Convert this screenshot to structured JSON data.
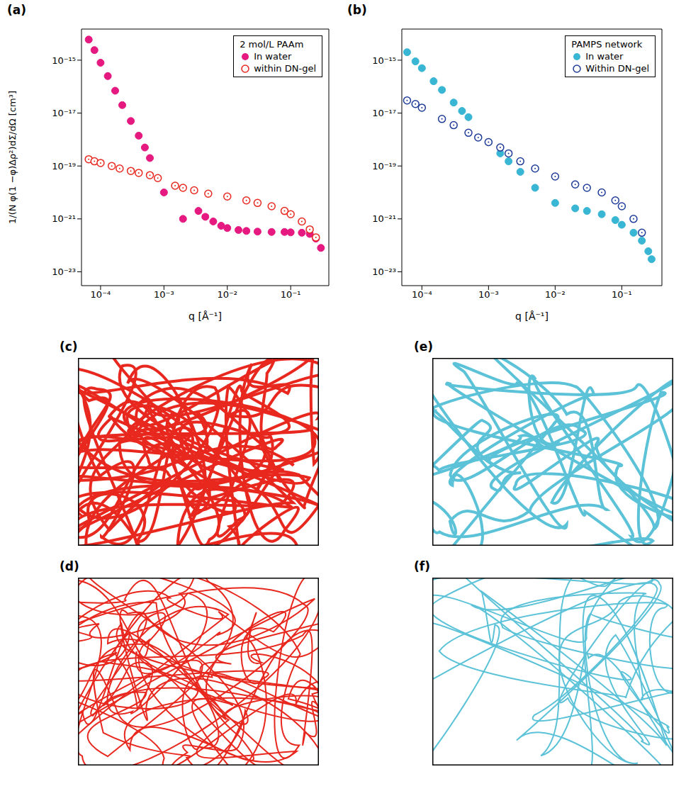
{
  "chart_data": [
    {
      "panel": "(a)",
      "type": "scatter",
      "log": true,
      "grid": false,
      "legend": "top-right",
      "legend_title": "2 mol/L PAAm",
      "x_label": "q [Å⁻¹]",
      "y_label": "1/(N φ(1 −φ)Δρ²)dΣ/dΩ [cm³]",
      "xlim": [
        5e-05,
        0.4
      ],
      "ylim": [
        3e-24,
        1.5e-14
      ],
      "xticks": [
        {
          "value": 0.0001,
          "label": "10⁻⁴"
        },
        {
          "value": 0.001,
          "label": "10⁻³"
        },
        {
          "value": 0.01,
          "label": "10⁻²"
        },
        {
          "value": 0.1,
          "label": "10⁻¹"
        }
      ],
      "yticks": [
        {
          "value": 1e-23,
          "label": "10⁻²³"
        },
        {
          "value": 1e-21,
          "label": "10⁻²¹"
        },
        {
          "value": 1e-19,
          "label": "10⁻¹⁹"
        },
        {
          "value": 1e-17,
          "label": "10⁻¹⁷"
        },
        {
          "value": 1e-15,
          "label": "10⁻¹⁵"
        }
      ],
      "series": [
        {
          "name": "In water",
          "color": "#e5197f",
          "marker": "circle",
          "x": [
            6.5e-05,
            8e-05,
            0.0001,
            0.00013,
            0.00017,
            0.00022,
            0.0003,
            0.0004,
            0.0005,
            0.0006,
            0.001,
            0.002,
            0.0035,
            0.0045,
            0.006,
            0.008,
            0.01,
            0.015,
            0.02,
            0.03,
            0.05,
            0.08,
            0.1,
            0.15,
            0.2,
            0.25,
            0.3
          ],
          "values": [
            6e-15,
            2.4e-15,
            8e-16,
            2.5e-16,
            7e-17,
            2e-17,
            5e-18,
            1.4e-18,
            5e-19,
            2e-19,
            1e-20,
            1e-21,
            2e-21,
            1.2e-21,
            8e-22,
            5.5e-22,
            4.5e-22,
            3.8e-22,
            3.5e-22,
            3.3e-22,
            3.2e-22,
            3.2e-22,
            3.1e-22,
            3e-22,
            2.7e-22,
            1.8e-22,
            8e-23
          ]
        },
        {
          "name": "within DN-gel",
          "color": "#e8281e",
          "marker": "open_circle",
          "x": [
            6.5e-05,
            8e-05,
            0.0001,
            0.00015,
            0.0002,
            0.0003,
            0.0004,
            0.0006,
            0.0008,
            0.0015,
            0.002,
            0.003,
            0.005,
            0.01,
            0.02,
            0.03,
            0.05,
            0.08,
            0.1,
            0.15,
            0.2,
            0.25
          ],
          "values": [
            1.8e-19,
            1.5e-19,
            1.3e-19,
            1e-19,
            8e-20,
            6.5e-20,
            5.5e-20,
            4.5e-20,
            3.5e-20,
            1.8e-20,
            1.5e-20,
            1.2e-20,
            9e-21,
            7e-21,
            5e-21,
            4e-21,
            3e-21,
            2e-21,
            1.5e-21,
            8e-22,
            4e-22,
            2e-22
          ]
        }
      ]
    },
    {
      "panel": "(b)",
      "type": "scatter",
      "log": true,
      "grid": false,
      "legend": "top-right",
      "legend_title": "PAMPS network",
      "x_label": "q [Å⁻¹]",
      "xlim": [
        5e-05,
        0.4
      ],
      "ylim": [
        3e-24,
        1.5e-14
      ],
      "xticks": [
        {
          "value": 0.0001,
          "label": "10⁻⁴"
        },
        {
          "value": 0.001,
          "label": "10⁻³"
        },
        {
          "value": 0.01,
          "label": "10⁻²"
        },
        {
          "value": 0.1,
          "label": "10⁻¹"
        }
      ],
      "yticks": [
        {
          "value": 1e-23,
          "label": "10⁻²³"
        },
        {
          "value": 1e-21,
          "label": "10⁻²¹"
        },
        {
          "value": 1e-19,
          "label": "10⁻¹⁹"
        },
        {
          "value": 1e-17,
          "label": "10⁻¹⁷"
        },
        {
          "value": 1e-15,
          "label": "10⁻¹⁵"
        }
      ],
      "series": [
        {
          "name": "In water",
          "color": "#38b6d3",
          "marker": "circle",
          "x": [
            6e-05,
            8e-05,
            0.0001,
            0.00015,
            0.0002,
            0.0003,
            0.0004,
            0.0005,
            0.001,
            0.0015,
            0.002,
            0.003,
            0.005,
            0.01,
            0.02,
            0.03,
            0.05,
            0.08,
            0.1,
            0.15,
            0.2,
            0.25,
            0.28
          ],
          "values": [
            2e-15,
            9e-16,
            5e-16,
            1.6e-16,
            7.5e-17,
            2.5e-17,
            1.2e-17,
            7e-18,
            8e-19,
            3e-19,
            1.5e-19,
            6e-20,
            1.5e-20,
            4e-21,
            2.5e-21,
            2e-21,
            1.5e-21,
            9e-22,
            6e-22,
            3e-22,
            1.5e-22,
            6e-23,
            3e-23
          ]
        },
        {
          "name": "Within DN-gel",
          "color": "#1f3c99",
          "marker": "open_circle",
          "x": [
            6e-05,
            8e-05,
            0.0001,
            0.0002,
            0.0003,
            0.0005,
            0.0007,
            0.001,
            0.0015,
            0.002,
            0.003,
            0.005,
            0.01,
            0.02,
            0.03,
            0.05,
            0.08,
            0.1,
            0.15,
            0.2
          ],
          "values": [
            3e-17,
            2.2e-17,
            1.6e-17,
            6e-18,
            3.5e-18,
            1.8e-18,
            1.2e-18,
            8e-19,
            5e-19,
            3e-19,
            1.5e-19,
            8e-20,
            4e-20,
            2e-20,
            1.5e-20,
            1e-20,
            5e-21,
            3e-21,
            1e-21,
            3e-22
          ]
        }
      ]
    }
  ],
  "diagrams": [
    {
      "label": "(c)",
      "color": "#e8281e"
    },
    {
      "label": "(d)",
      "color": "#e8281e"
    },
    {
      "label": "(e)",
      "color": "#5bc2d8"
    },
    {
      "label": "(f)",
      "color": "#5bc2d8"
    }
  ]
}
